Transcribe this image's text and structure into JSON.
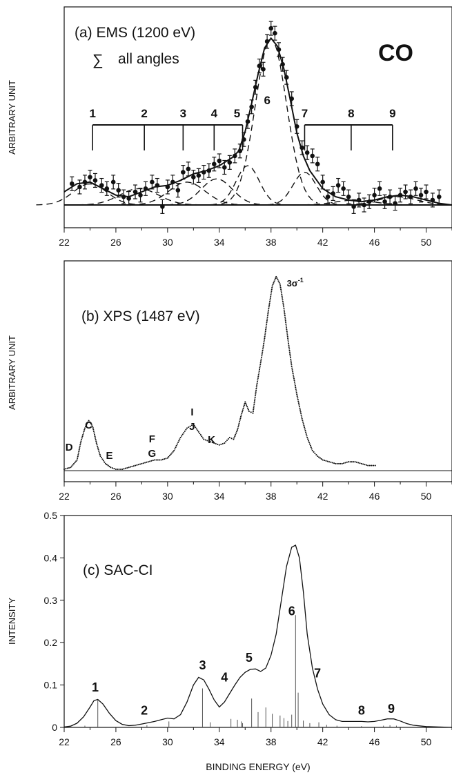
{
  "figure": {
    "panels": [
      "a",
      "b",
      "c"
    ],
    "color": "#111111"
  },
  "chart_data": [
    {
      "id": "a",
      "type": "scatter",
      "title": "(a) EMS (1200 eV)",
      "subtitle": "all angles",
      "subtitle_symbol": "∑",
      "molecule": "CO",
      "ylabel": "ARBITRARY UNIT",
      "xlim": [
        22,
        52
      ],
      "xticks": [
        22,
        26,
        30,
        34,
        38,
        42,
        46,
        50
      ],
      "series": [
        {
          "x": [
            22.6,
            23.2,
            23.6,
            24.0,
            24.4,
            24.9,
            25.3,
            25.8,
            26.2,
            26.6,
            27.0,
            27.5,
            27.9,
            28.3,
            28.8,
            29.2,
            29.6,
            30.0,
            30.4,
            30.8,
            31.2,
            31.6,
            32.0,
            32.4,
            32.8,
            33.2,
            33.6,
            34.0,
            34.4,
            34.8,
            35.2,
            35.6,
            35.9,
            36.2,
            36.5,
            36.8,
            37.1,
            37.4,
            37.7,
            38.0,
            38.3,
            38.6,
            38.9,
            39.2,
            39.6,
            40.0,
            40.4,
            40.8,
            41.2,
            41.6,
            42.0,
            42.4,
            42.8,
            43.2,
            43.6,
            44.0,
            44.4,
            44.8,
            45.2,
            45.6,
            46.0,
            46.4,
            46.8,
            47.2,
            47.6,
            48.0,
            48.4,
            48.8,
            49.2,
            49.6,
            50.0,
            50.5,
            51.0
          ],
          "y": [
            0.13,
            0.11,
            0.14,
            0.17,
            0.15,
            0.12,
            0.1,
            0.14,
            0.09,
            0.05,
            0.04,
            0.08,
            0.06,
            0.1,
            0.14,
            0.12,
            -0.01,
            0.11,
            0.14,
            0.09,
            0.2,
            0.22,
            0.17,
            0.18,
            0.2,
            0.21,
            0.25,
            0.27,
            0.23,
            0.26,
            0.3,
            0.33,
            0.4,
            0.51,
            0.6,
            0.72,
            0.85,
            0.83,
            1.0,
            1.08,
            1.05,
            0.95,
            0.86,
            0.78,
            0.65,
            0.48,
            0.35,
            0.32,
            0.3,
            0.25,
            0.14,
            0.05,
            0.07,
            0.12,
            0.1,
            0.05,
            -0.01,
            0.03,
            0.0,
            0.02,
            0.06,
            0.1,
            0.02,
            0.05,
            0.01,
            0.06,
            0.08,
            0.05,
            0.1,
            0.06,
            0.08,
            0.03,
            0.05
          ]
        }
      ],
      "fit_curve": {
        "x": [
          22.0,
          23.0,
          24.0,
          25.0,
          26.0,
          27.0,
          28.0,
          29.0,
          30.0,
          31.0,
          32.0,
          33.0,
          34.0,
          35.0,
          35.5,
          36.0,
          36.5,
          37.0,
          37.5,
          38.0,
          38.5,
          39.0,
          39.5,
          40.0,
          40.5,
          41.0,
          42.0,
          43.0,
          44.0,
          45.0,
          46.0,
          47.0,
          48.0,
          49.0,
          50.0,
          51.0,
          52.0
        ],
        "y": [
          0.08,
          0.13,
          0.14,
          0.1,
          0.06,
          0.05,
          0.08,
          0.11,
          0.12,
          0.15,
          0.19,
          0.21,
          0.24,
          0.29,
          0.33,
          0.45,
          0.62,
          0.8,
          0.96,
          1.02,
          0.97,
          0.83,
          0.64,
          0.44,
          0.3,
          0.21,
          0.1,
          0.05,
          0.03,
          0.02,
          0.03,
          0.05,
          0.06,
          0.05,
          0.03,
          0.01,
          0.0
        ]
      },
      "component_peaks": [
        {
          "center": 24.0,
          "height": 0.13,
          "width": 1.3
        },
        {
          "center": 27.8,
          "height": 0.1,
          "width": 1.5
        },
        {
          "center": 31.5,
          "height": 0.14,
          "width": 1.4
        },
        {
          "center": 33.8,
          "height": 0.16,
          "width": 1.2
        },
        {
          "center": 36.2,
          "height": 0.24,
          "width": 0.9
        },
        {
          "center": 38.0,
          "height": 1.02,
          "width": 1.2
        },
        {
          "center": 40.6,
          "height": 0.2,
          "width": 0.9
        },
        {
          "center": 44.5,
          "height": 0.03,
          "width": 1.5
        },
        {
          "center": 47.8,
          "height": 0.05,
          "width": 1.5
        }
      ],
      "ylim": [
        -0.15,
        1.25
      ],
      "annotations": [
        {
          "text": "1",
          "x": 24.2
        },
        {
          "text": "2",
          "x": 28.2
        },
        {
          "text": "3",
          "x": 31.2
        },
        {
          "text": "4",
          "x": 33.6
        },
        {
          "text": "5",
          "x": 35.8
        },
        {
          "text": "6",
          "x": 37.6
        },
        {
          "text": "7",
          "x": 40.6
        },
        {
          "text": "8",
          "x": 44.2
        },
        {
          "text": "9",
          "x": 47.4
        }
      ],
      "bracket_groups": [
        {
          "from": 24.2,
          "to": 35.8,
          "ticks": [
            24.2,
            28.2,
            31.2,
            33.6,
            35.8
          ]
        },
        {
          "from": 40.6,
          "to": 47.4,
          "ticks": [
            40.6,
            44.2,
            47.4
          ]
        }
      ]
    },
    {
      "id": "b",
      "type": "line",
      "title": "(b) XPS (1487 eV)",
      "ylabel": "ARBITRARY UNIT",
      "xlim": [
        22,
        52
      ],
      "xticks": [
        22,
        26,
        30,
        34,
        38,
        42,
        46,
        50
      ],
      "ylim": [
        -0.05,
        1.1
      ],
      "series": [
        {
          "x": [
            22.0,
            22.5,
            23.0,
            23.3,
            23.6,
            23.9,
            24.2,
            24.5,
            24.8,
            25.2,
            25.6,
            26.0,
            26.5,
            27.0,
            27.5,
            28.0,
            28.5,
            29.0,
            29.5,
            30.0,
            30.5,
            31.0,
            31.5,
            32.0,
            32.4,
            32.8,
            33.2,
            33.6,
            34.0,
            34.4,
            34.8,
            35.1,
            35.4,
            35.7,
            36.0,
            36.3,
            36.6,
            36.9,
            37.2,
            37.5,
            37.8,
            38.1,
            38.4,
            38.7,
            39.0,
            39.3,
            39.6,
            40.0,
            40.4,
            40.8,
            41.2,
            41.6,
            42.0,
            42.5,
            43.0,
            43.5,
            44.0,
            44.5,
            45.0,
            45.5,
            46.2
          ],
          "y": [
            0.0,
            0.01,
            0.05,
            0.15,
            0.22,
            0.26,
            0.23,
            0.14,
            0.07,
            0.03,
            0.01,
            0.0,
            0.0,
            0.01,
            0.02,
            0.03,
            0.04,
            0.05,
            0.05,
            0.06,
            0.1,
            0.17,
            0.22,
            0.24,
            0.2,
            0.16,
            0.15,
            0.14,
            0.13,
            0.14,
            0.17,
            0.16,
            0.21,
            0.29,
            0.36,
            0.31,
            0.3,
            0.45,
            0.57,
            0.7,
            0.85,
            0.98,
            1.03,
            0.99,
            0.86,
            0.7,
            0.55,
            0.4,
            0.27,
            0.17,
            0.1,
            0.07,
            0.05,
            0.04,
            0.03,
            0.03,
            0.04,
            0.04,
            0.03,
            0.02,
            0.02
          ]
        }
      ],
      "annotations": [
        {
          "text": "D",
          "x": 22.7
        },
        {
          "text": "C",
          "x": 23.9
        },
        {
          "text": "E",
          "x": 25.5
        },
        {
          "text": "F",
          "x": 28.8
        },
        {
          "text": "G",
          "x": 28.8
        },
        {
          "text": "I",
          "x": 31.9
        },
        {
          "text": "J",
          "x": 31.9
        },
        {
          "text": "K",
          "x": 33.4
        },
        {
          "text": "3σ",
          "x": 38.9,
          "sup": "-1"
        }
      ]
    },
    {
      "id": "c",
      "type": "line",
      "title": "(c) SAC-CI",
      "xlabel": "BINDING ENERGY (eV)",
      "ylabel": "INTENSITY",
      "xlim": [
        22,
        52
      ],
      "ylim": [
        0,
        0.5
      ],
      "xticks": [
        22,
        26,
        30,
        34,
        38,
        42,
        46,
        50
      ],
      "yticks": [
        0,
        0.1,
        0.2,
        0.3,
        0.4,
        0.5
      ],
      "series": [
        {
          "x": [
            22.0,
            22.5,
            23.0,
            23.5,
            24.0,
            24.3,
            24.6,
            25.0,
            25.5,
            26.0,
            26.5,
            27.0,
            27.5,
            28.0,
            28.5,
            29.0,
            29.5,
            30.0,
            30.5,
            31.0,
            31.5,
            32.0,
            32.4,
            32.8,
            33.2,
            33.6,
            34.0,
            34.4,
            34.8,
            35.2,
            35.6,
            36.0,
            36.4,
            36.8,
            37.2,
            37.6,
            38.0,
            38.4,
            38.8,
            39.2,
            39.6,
            39.9,
            40.2,
            40.5,
            40.8,
            41.2,
            41.6,
            42.0,
            42.5,
            43.0,
            43.5,
            44.0,
            44.5,
            45.0,
            45.5,
            46.0,
            46.5,
            47.0,
            47.5,
            48.0,
            48.5,
            49.0,
            50.0,
            51.0,
            52.0
          ],
          "y": [
            0.001,
            0.003,
            0.01,
            0.025,
            0.048,
            0.063,
            0.066,
            0.055,
            0.033,
            0.016,
            0.007,
            0.004,
            0.005,
            0.008,
            0.011,
            0.014,
            0.018,
            0.022,
            0.02,
            0.03,
            0.06,
            0.1,
            0.118,
            0.112,
            0.09,
            0.065,
            0.048,
            0.06,
            0.08,
            0.1,
            0.118,
            0.13,
            0.137,
            0.138,
            0.132,
            0.14,
            0.17,
            0.22,
            0.3,
            0.38,
            0.425,
            0.43,
            0.4,
            0.32,
            0.22,
            0.14,
            0.09,
            0.055,
            0.03,
            0.018,
            0.014,
            0.014,
            0.014,
            0.014,
            0.013,
            0.014,
            0.017,
            0.02,
            0.02,
            0.015,
            0.009,
            0.005,
            0.002,
            0.001,
            0.0
          ]
        }
      ],
      "stick_spectrum": {
        "x": [
          23.6,
          24.6,
          28.4,
          30.1,
          32.7,
          33.3,
          34.9,
          35.4,
          35.7,
          35.8,
          36.5,
          37.0,
          37.6,
          38.1,
          38.7,
          39.0,
          39.3,
          39.6,
          39.9,
          40.1,
          40.5,
          41.0,
          41.7,
          42.3,
          43.1,
          45.0,
          46.7,
          47.2,
          47.7
        ],
        "y": [
          0.004,
          0.065,
          0.005,
          0.014,
          0.092,
          0.012,
          0.02,
          0.018,
          0.014,
          0.01,
          0.068,
          0.036,
          0.047,
          0.032,
          0.028,
          0.022,
          0.015,
          0.03,
          0.265,
          0.082,
          0.016,
          0.01,
          0.012,
          0.006,
          0.004,
          0.003,
          0.004,
          0.005,
          0.004
        ]
      },
      "annotations": [
        {
          "text": "1",
          "x": 24.4,
          "y": 0.085
        },
        {
          "text": "2",
          "x": 28.2,
          "y": 0.03
        },
        {
          "text": "3",
          "x": 32.7,
          "y": 0.137
        },
        {
          "text": "4",
          "x": 34.4,
          "y": 0.108
        },
        {
          "text": "5",
          "x": 36.3,
          "y": 0.155
        },
        {
          "text": "6",
          "x": 39.6,
          "y": 0.265
        },
        {
          "text": "7",
          "x": 41.6,
          "y": 0.118
        },
        {
          "text": "8",
          "x": 45.0,
          "y": 0.03
        },
        {
          "text": "9",
          "x": 47.3,
          "y": 0.034
        }
      ]
    }
  ]
}
